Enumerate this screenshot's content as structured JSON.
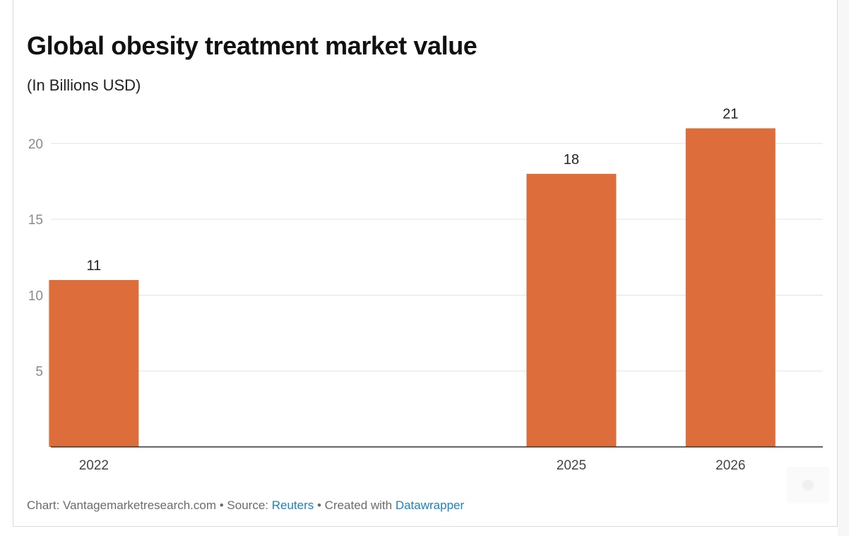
{
  "chart_data": {
    "type": "bar",
    "title": "Global obesity treatment market value",
    "subtitle": "(In Billions USD)",
    "xlabel": "",
    "ylabel": "",
    "ylim": [
      0,
      22
    ],
    "yticks": [
      5,
      10,
      15,
      20
    ],
    "categories": [
      "2022",
      "2025",
      "2026"
    ],
    "category_positions": [
      2022,
      2025,
      2026
    ],
    "xlim": [
      2021.73,
      2026.58
    ],
    "values": [
      11,
      18,
      21
    ],
    "data_labels": [
      "11",
      "18",
      "21"
    ],
    "grid": true,
    "bar_color": "#dd6e3c"
  },
  "footer": {
    "prefix": "Chart: Vantagemarketresearch.com • Source: ",
    "source_link": "Reuters",
    "middle": " • Created with ",
    "tool_link": "Datawrapper"
  },
  "colors": {
    "accent": "#dd6e3c",
    "link": "#1d81c4",
    "grid": "#e3e3e3",
    "axis": "#333333",
    "tick_text": "#8a8a8a"
  }
}
